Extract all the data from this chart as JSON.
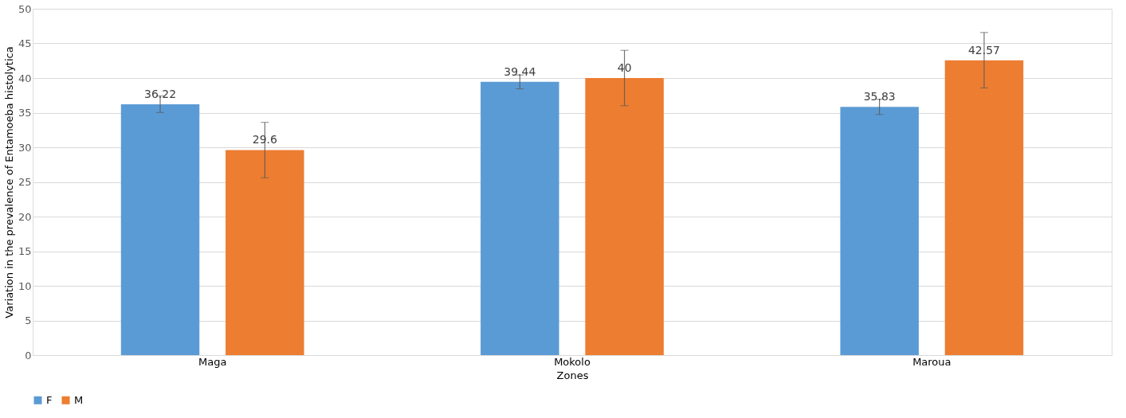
{
  "chart_data": {
    "type": "bar",
    "xlabel": "Zones",
    "ylabel": "Variation in the prevalence of Entamoeba histolytica",
    "categories": [
      "Maga",
      "Mokolo",
      "Maroua"
    ],
    "series": [
      {
        "name": "F",
        "color": "#5b9bd5",
        "values": [
          36.22,
          39.44,
          35.83
        ],
        "errors": [
          1.2,
          1.0,
          1.1
        ]
      },
      {
        "name": "M",
        "color": "#ed7d31",
        "values": [
          29.6,
          40,
          42.57
        ],
        "errors": [
          4,
          4,
          4
        ]
      }
    ],
    "ylim": [
      0,
      50
    ],
    "yticks": [
      0,
      5,
      10,
      15,
      20,
      25,
      30,
      35,
      40,
      45,
      50
    ],
    "grid": "y",
    "legend": "bottom",
    "data_labels": true
  }
}
